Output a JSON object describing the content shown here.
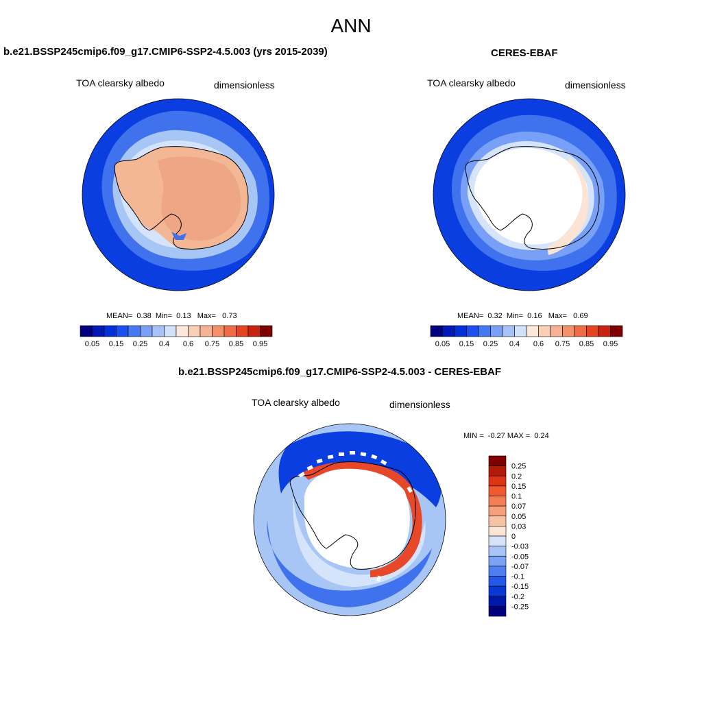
{
  "page": {
    "title": "ANN"
  },
  "panels": {
    "model": {
      "title": "b.e21.BSSP245cmip6.f09_g17.CMIP6-SSP2-4.5.003 (yrs 2015-2039)",
      "left_label": "TOA clearsky albedo",
      "right_label": "dimensionless",
      "stats": {
        "mean_label": "MEAN=",
        "mean": "0.38",
        "min_label": "Min=",
        "min": "0.13",
        "max_label": "Max=",
        "max": "0.73"
      }
    },
    "obs": {
      "title": "CERES-EBAF",
      "left_label": "TOA clearsky albedo",
      "right_label": "dimensionless",
      "stats": {
        "mean_label": "MEAN=",
        "mean": "0.32",
        "min_label": "Min=",
        "min": "0.16",
        "max_label": "Max=",
        "max": "0.69"
      }
    },
    "diff": {
      "title": "b.e21.BSSP245cmip6.f09_g17.CMIP6-SSP2-4.5.003 - CERES-EBAF",
      "left_label": "TOA clearsky albedo",
      "right_label": "dimensionless",
      "stats": {
        "min_label": "MIN =",
        "min": "-0.27",
        "max_label": "MAX =",
        "max": "0.24"
      }
    }
  },
  "colorbar_abs": {
    "colors": [
      "#00007f",
      "#0018b4",
      "#0030d8",
      "#1c50ee",
      "#4678f4",
      "#78a0f6",
      "#a6c2f8",
      "#d2e0fa",
      "#fbe8dc",
      "#f8cfb4",
      "#f6b292",
      "#f4906a",
      "#f06c46",
      "#e44420",
      "#c62410",
      "#7e0000"
    ],
    "tick_labels": [
      "0.05",
      "0.15",
      "0.25",
      "0.4",
      "0.6",
      "0.75",
      "0.85",
      "0.95"
    ]
  },
  "colorbar_diff": {
    "colors": [
      "#7e0000",
      "#b21a08",
      "#dc3414",
      "#f2582e",
      "#f47e54",
      "#f6a07c",
      "#f8c2a4",
      "#fbe6d6",
      "#d6e2fa",
      "#aac4f8",
      "#7ca2f6",
      "#4e7ef2",
      "#2458ea",
      "#0838d4",
      "#0018a8",
      "#00007f"
    ],
    "tick_labels": [
      "0.25",
      "0.2",
      "0.15",
      "0.1",
      "0.07",
      "0.05",
      "0.03",
      "0",
      "-0.03",
      "-0.05",
      "-0.07",
      "-0.1",
      "-0.15",
      "-0.2",
      "-0.25"
    ]
  },
  "map_palette": {
    "deep_blue": "#0b3ee0",
    "mid_blue": "#3f72ec",
    "light_blue": "#a7c6f6",
    "pale_blue": "#d5e4fb",
    "pale_peach": "#fbe4d3",
    "peach": "#f3b796",
    "salmon": "#efa684",
    "red": "#e8482a",
    "coast": "#000000"
  }
}
